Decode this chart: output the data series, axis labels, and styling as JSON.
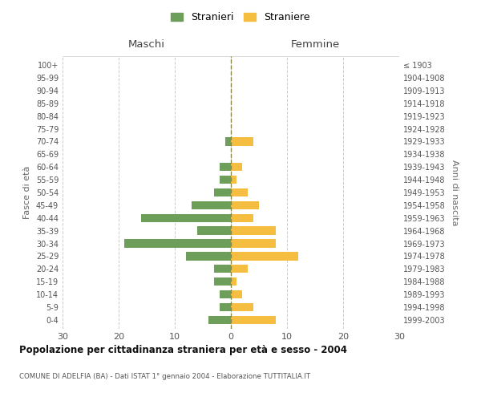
{
  "age_groups": [
    "0-4",
    "5-9",
    "10-14",
    "15-19",
    "20-24",
    "25-29",
    "30-34",
    "35-39",
    "40-44",
    "45-49",
    "50-54",
    "55-59",
    "60-64",
    "65-69",
    "70-74",
    "75-79",
    "80-84",
    "85-89",
    "90-94",
    "95-99",
    "100+"
  ],
  "birth_years": [
    "1999-2003",
    "1994-1998",
    "1989-1993",
    "1984-1988",
    "1979-1983",
    "1974-1978",
    "1969-1973",
    "1964-1968",
    "1959-1963",
    "1954-1958",
    "1949-1953",
    "1944-1948",
    "1939-1943",
    "1934-1938",
    "1929-1933",
    "1924-1928",
    "1919-1923",
    "1914-1918",
    "1909-1913",
    "1904-1908",
    "≤ 1903"
  ],
  "males": [
    4,
    2,
    2,
    3,
    3,
    8,
    19,
    6,
    16,
    7,
    3,
    2,
    2,
    0,
    1,
    0,
    0,
    0,
    0,
    0,
    0
  ],
  "females": [
    8,
    4,
    2,
    1,
    3,
    12,
    8,
    8,
    4,
    5,
    3,
    1,
    2,
    0,
    4,
    0,
    0,
    0,
    0,
    0,
    0
  ],
  "male_color": "#6d9e5a",
  "female_color": "#f5be41",
  "title": "Popolazione per cittadinanza straniera per età e sesso - 2004",
  "subtitle": "COMUNE DI ADELFIA (BA) - Dati ISTAT 1° gennaio 2004 - Elaborazione TUTTITALIA.IT",
  "xlabel_left": "Maschi",
  "xlabel_right": "Femmine",
  "ylabel_left": "Fasce di età",
  "ylabel_right": "Anni di nascita",
  "legend_stranieri": "Stranieri",
  "legend_straniere": "Straniere",
  "xlim": 30,
  "background_color": "#ffffff",
  "grid_color": "#cccccc"
}
